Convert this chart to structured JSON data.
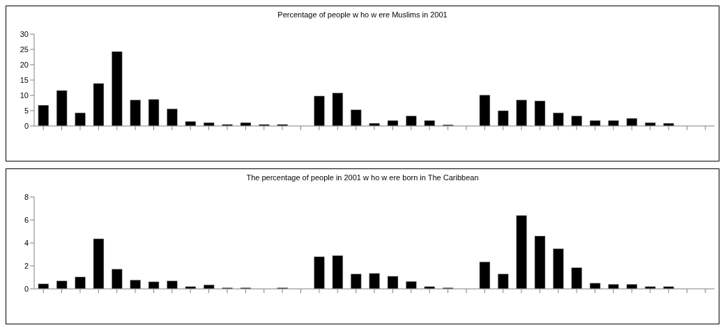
{
  "chart_data": [
    {
      "type": "bar",
      "title": "Percentage of people w ho w ere Muslims in 2001",
      "categories": [
        null,
        null,
        null,
        null,
        null,
        null,
        null,
        null,
        null,
        null,
        null,
        null,
        null,
        null,
        null,
        null,
        null,
        null,
        null,
        null,
        null,
        null,
        null,
        null,
        null,
        null,
        null,
        null,
        null,
        null,
        null,
        null,
        null,
        null,
        null,
        null,
        null
      ],
      "series": [
        {
          "color": "#000000",
          "values": [
            6.8,
            11.6,
            4.3,
            13.9,
            24.3,
            8.5,
            8.7,
            5.6,
            1.5,
            1.1,
            0.5,
            1.1,
            0.5,
            0.5,
            null,
            9.8,
            10.8,
            5.3,
            0.9,
            1.8,
            3.3,
            1.8,
            0.4,
            null,
            10.1,
            5.0,
            8.5,
            8.2,
            4.3,
            3.3,
            1.8,
            1.8,
            2.5,
            1.1,
            0.9,
            null,
            null
          ]
        }
      ],
      "ylim": [
        0,
        30
      ],
      "yticks": [
        0,
        5,
        10,
        15,
        20,
        25,
        30
      ],
      "grid": false,
      "legend": false
    },
    {
      "type": "bar",
      "title": "The percentage of people in 2001 w ho w ere born in The Caribbean",
      "categories": [
        null,
        null,
        null,
        null,
        null,
        null,
        null,
        null,
        null,
        null,
        null,
        null,
        null,
        null,
        null,
        null,
        null,
        null,
        null,
        null,
        null,
        null,
        null,
        null,
        null,
        null,
        null,
        null,
        null,
        null,
        null,
        null,
        null,
        null,
        null,
        null,
        null
      ],
      "series": [
        {
          "color": "#000000",
          "values": [
            0.44,
            0.7,
            1.04,
            4.36,
            1.72,
            0.77,
            0.62,
            0.7,
            0.2,
            0.35,
            0.1,
            0.1,
            0,
            0.1,
            null,
            2.8,
            2.9,
            1.3,
            1.35,
            1.1,
            0.65,
            0.2,
            0.1,
            null,
            2.35,
            1.3,
            6.4,
            4.6,
            3.5,
            1.85,
            0.5,
            0.4,
            0.4,
            0.2,
            0.2,
            null,
            null
          ]
        }
      ],
      "ylim": [
        0,
        8
      ],
      "yticks": [
        0,
        2,
        4,
        6,
        8
      ],
      "grid": false,
      "legend": false
    }
  ]
}
